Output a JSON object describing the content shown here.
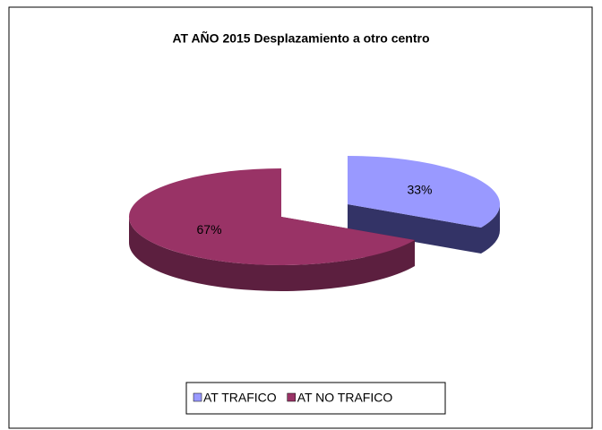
{
  "chart_data": {
    "type": "pie3d",
    "title": "AT AÑO 2015  Desplazamiento a otro centro",
    "categories": [
      "AT TRAFICO",
      "AT NO TRAFICO"
    ],
    "values": [
      33,
      67
    ],
    "value_labels": [
      "33%",
      "67%"
    ],
    "colors": [
      "#9999ff",
      "#993366"
    ],
    "side_colors": [
      "#333366",
      "#5c1f3f"
    ],
    "legend": "bottom"
  }
}
